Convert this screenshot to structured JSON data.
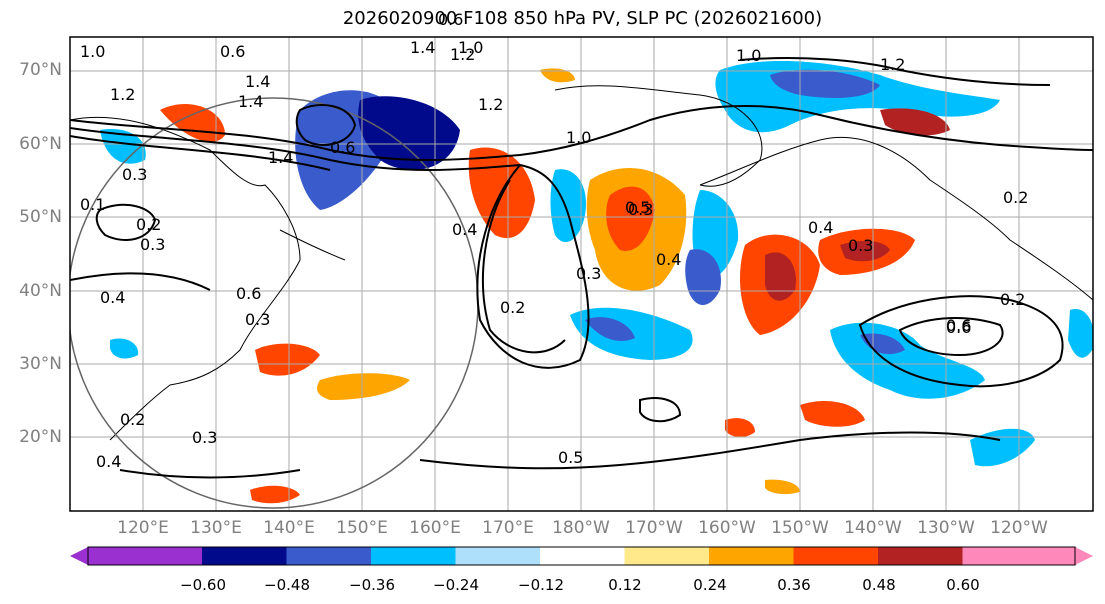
{
  "title": "2026020900 F108 850 hPa PV, SLP PC (2026021600)",
  "lat_labels": [
    "70°N",
    "60°N",
    "50°N",
    "40°N",
    "30°N",
    "20°N"
  ],
  "lon_labels": [
    "120°E",
    "130°E",
    "140°E",
    "150°E",
    "160°E",
    "170°E",
    "180°W",
    "170°W",
    "160°W",
    "150°W",
    "140°W",
    "130°W",
    "120°W"
  ],
  "colorbar": {
    "ticks": [
      "−0.60",
      "−0.48",
      "−0.36",
      "−0.24",
      "−0.12",
      "0.12",
      "0.24",
      "0.36",
      "0.48",
      "0.60"
    ],
    "colors": [
      "#9b30d0",
      "#000a8a",
      "#3a5bcc",
      "#00bfff",
      "#aee0fb",
      "#ffffff",
      "#ffe98a",
      "#ffa500",
      "#ff4500",
      "#b22222",
      "#ff88bb"
    ]
  },
  "contour_labels": [
    "1.0",
    "0.6",
    "1.4",
    "1.2",
    "1.4",
    "1.2",
    "1.4",
    "1.2",
    "1.0",
    "1.2",
    "1.0",
    "1.4",
    "0.6",
    "0.3",
    "0.2",
    "0.1",
    "0.4",
    "0.6",
    "0.3",
    "0.4",
    "0.2",
    "0.3",
    "0.5",
    "0.4",
    "0.4",
    "0.3",
    "0.2",
    "0.6",
    "0.3",
    "0.4",
    "0.5",
    "0.6",
    "0.3",
    "0.3",
    "0.2",
    "0.2",
    "0.6",
    "1.0"
  ]
}
